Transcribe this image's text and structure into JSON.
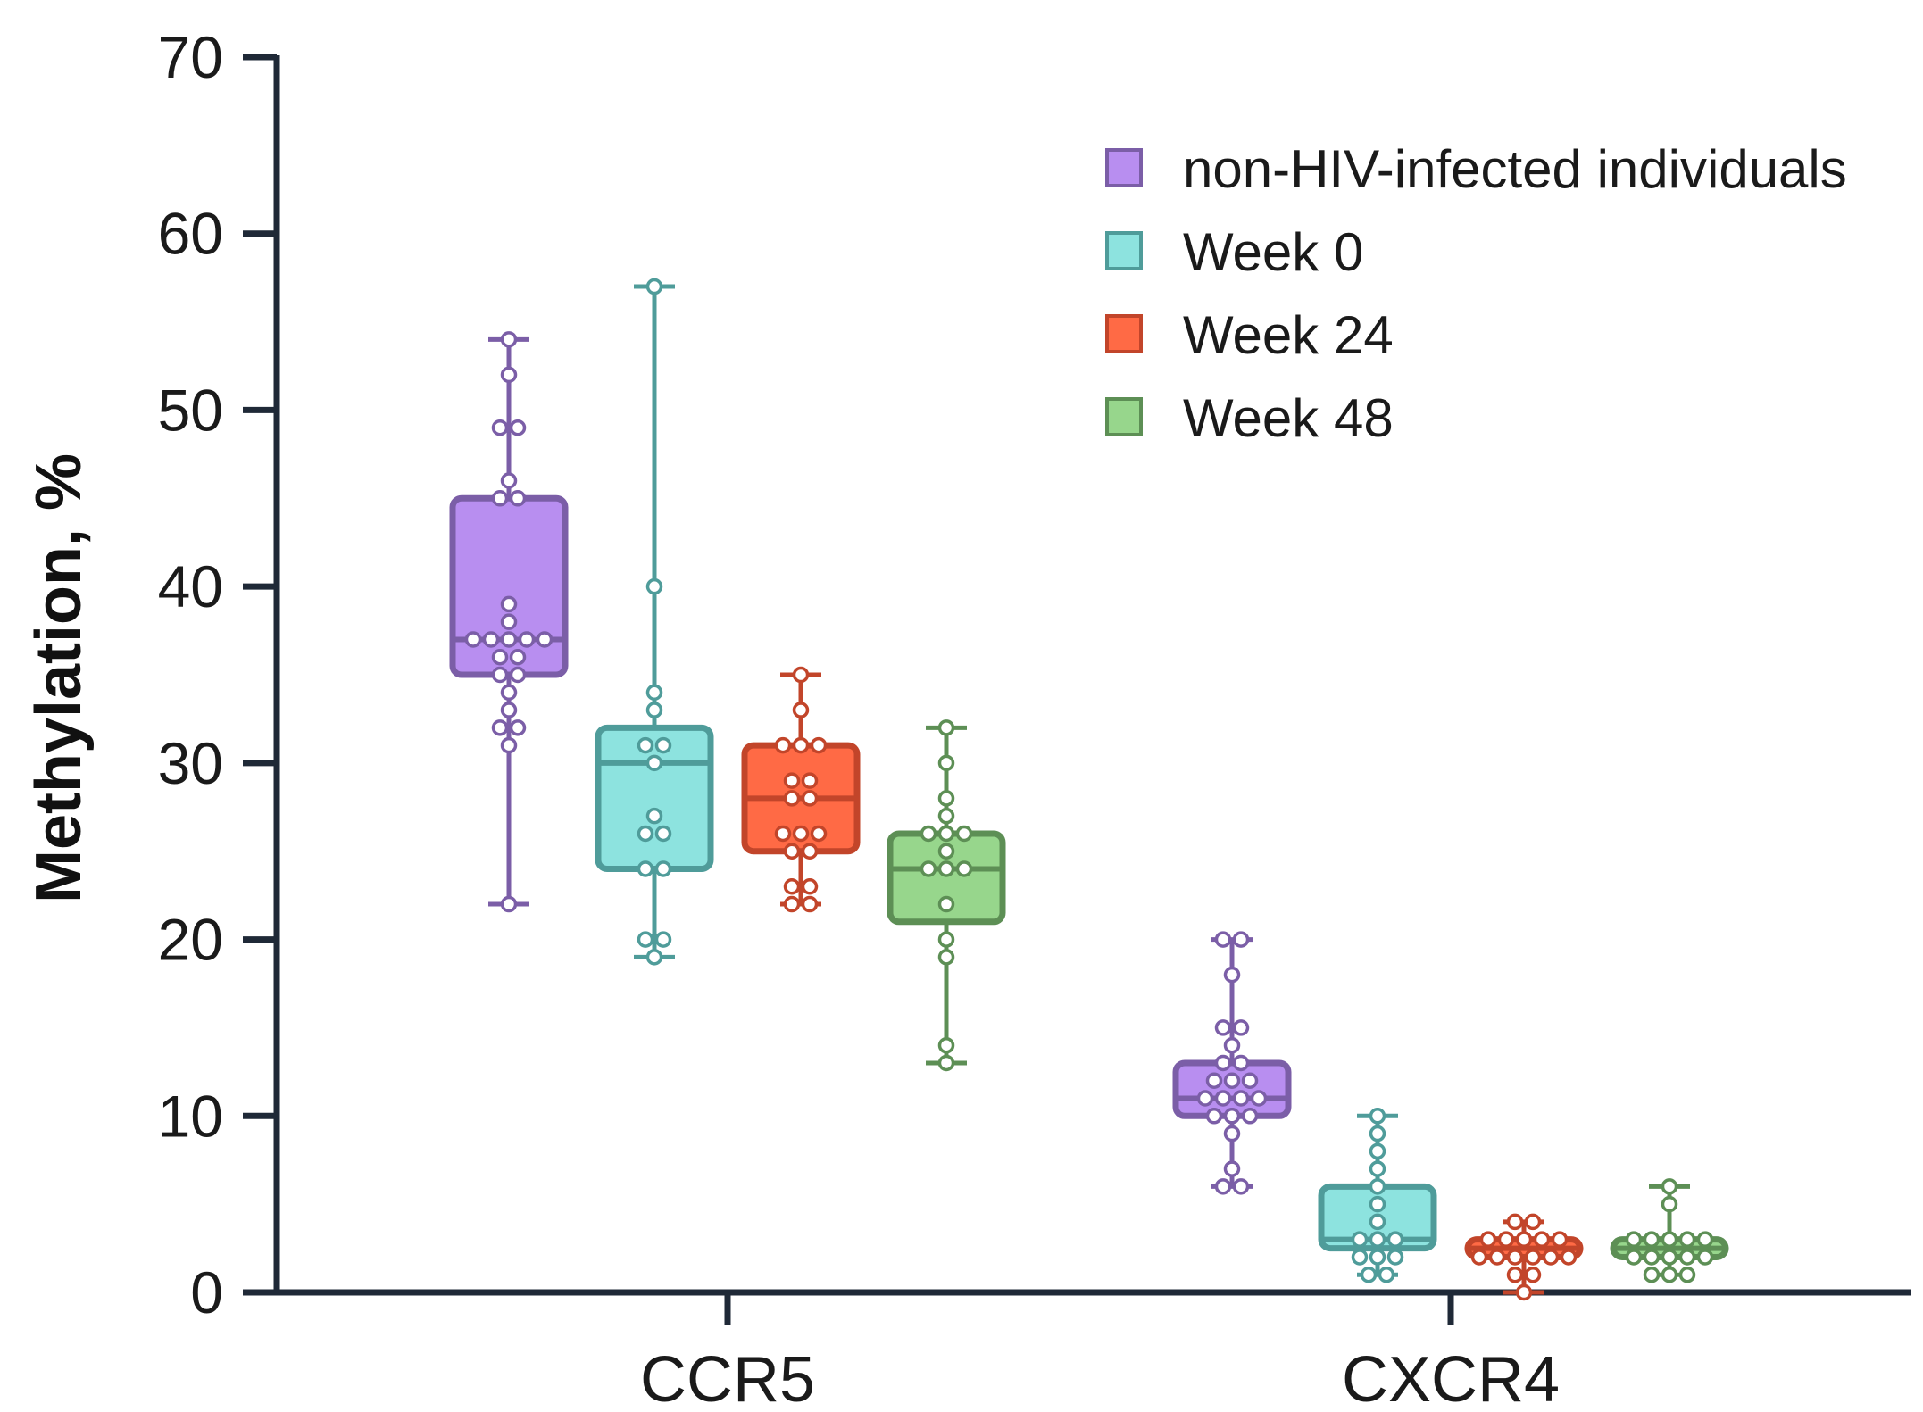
{
  "chart_data": {
    "type": "box",
    "title": "",
    "xlabel": "",
    "ylabel": "Methylation, %",
    "ylim": [
      0,
      70
    ],
    "yticks": [
      0,
      10,
      20,
      30,
      40,
      50,
      60,
      70
    ],
    "categories": [
      "CCR5",
      "CXCR4"
    ],
    "legend_position": "top-right",
    "series": [
      {
        "name": "non-HIV-infected individuals",
        "fill": "#b88ef0",
        "stroke": "#7b5ea7",
        "boxes": [
          {
            "category": "CCR5",
            "min": 22,
            "q1": 35,
            "median": 37,
            "q3": 45,
            "max": 54,
            "points": [
              54,
              52,
              49,
              49,
              46,
              45,
              45,
              39,
              38,
              37,
              37,
              37,
              37,
              37,
              36,
              36,
              35,
              35,
              34,
              33,
              32,
              32,
              31,
              22
            ]
          },
          {
            "category": "CXCR4",
            "min": 6,
            "q1": 10,
            "median": 11,
            "q3": 13,
            "max": 20,
            "points": [
              20,
              20,
              18,
              15,
              15,
              14,
              13,
              13,
              12,
              12,
              12,
              11,
              11,
              11,
              11,
              10,
              10,
              10,
              9,
              7,
              6,
              6
            ]
          }
        ]
      },
      {
        "name": "Week 0",
        "fill": "#8de3df",
        "stroke": "#4f9c9a",
        "boxes": [
          {
            "category": "CCR5",
            "min": 19,
            "q1": 24,
            "median": 30,
            "q3": 32,
            "max": 57,
            "points": [
              57,
              40,
              34,
              33,
              31,
              31,
              30,
              27,
              26,
              26,
              24,
              24,
              20,
              20,
              19
            ]
          },
          {
            "category": "CXCR4",
            "min": 1,
            "q1": 2.5,
            "median": 3,
            "q3": 6,
            "max": 10,
            "points": [
              10,
              9,
              8,
              7,
              6,
              5,
              4,
              3,
              3,
              3,
              2,
              2,
              2,
              1,
              1
            ]
          }
        ]
      },
      {
        "name": "Week 24",
        "fill": "#ff6a45",
        "stroke": "#c2452a",
        "boxes": [
          {
            "category": "CCR5",
            "min": 22,
            "q1": 25,
            "median": 28,
            "q3": 31,
            "max": 35,
            "points": [
              35,
              33,
              31,
              31,
              31,
              29,
              29,
              28,
              28,
              26,
              26,
              26,
              25,
              25,
              23,
              23,
              22,
              22
            ]
          },
          {
            "category": "CXCR4",
            "min": 0,
            "q1": 2,
            "median": 2.5,
            "q3": 3,
            "max": 4,
            "points": [
              4,
              4,
              3,
              3,
              3,
              3,
              3,
              2,
              2,
              2,
              2,
              2,
              2,
              1,
              1,
              0
            ]
          }
        ]
      },
      {
        "name": "Week 48",
        "fill": "#97d68c",
        "stroke": "#5d8f55",
        "boxes": [
          {
            "category": "CCR5",
            "min": 13,
            "q1": 21,
            "median": 24,
            "q3": 26,
            "max": 32,
            "points": [
              32,
              30,
              28,
              27,
              26,
              26,
              26,
              25,
              24,
              24,
              24,
              22,
              20,
              19,
              14,
              13
            ]
          },
          {
            "category": "CXCR4",
            "min": 1,
            "q1": 2,
            "median": 2.5,
            "q3": 3,
            "max": 6,
            "points": [
              6,
              5,
              3,
              3,
              3,
              3,
              3,
              2,
              2,
              2,
              2,
              2,
              1,
              1,
              1
            ]
          }
        ]
      }
    ]
  }
}
